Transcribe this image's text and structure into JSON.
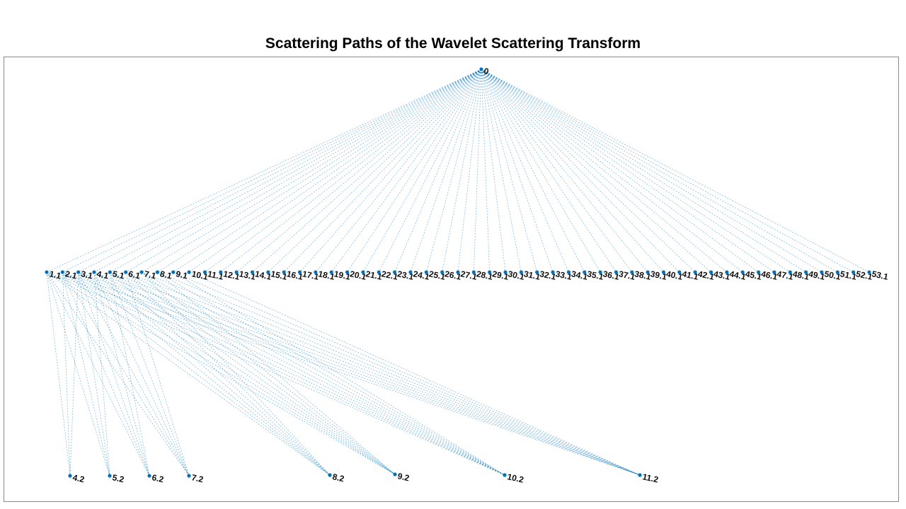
{
  "title": "Scattering Paths of the Wavelet Scattering Transform",
  "colors": {
    "edge": "#0072BD",
    "node": "#0072BD",
    "frame": "#8a8a8a"
  },
  "graph": {
    "root": "0",
    "level1": [
      "1.1",
      "2.1",
      "3.1",
      "4.1",
      "5.1",
      "6.1",
      "7.1",
      "8.1",
      "9.1",
      "10.1",
      "11.1",
      "12.1",
      "13.1",
      "14.1",
      "15.1",
      "16.1",
      "17.1",
      "18.1",
      "19.1",
      "20.1",
      "21.1",
      "22.1",
      "23.1",
      "24.1",
      "25.1",
      "26.1",
      "27.1",
      "28.1",
      "29.1",
      "30.1",
      "31.1",
      "32.1",
      "33.1",
      "34.1",
      "35.1",
      "36.1",
      "37.1",
      "38.1",
      "39.1",
      "40.1",
      "41.1",
      "42.1",
      "43.1",
      "44.1",
      "45.1",
      "46.1",
      "47.1",
      "48.1",
      "49.1",
      "50.1",
      "51.1",
      "52.1",
      "53.1"
    ],
    "level2": [
      "4.2",
      "5.2",
      "6.2",
      "7.2",
      "8.2",
      "9.2",
      "10.2",
      "11.2"
    ]
  }
}
